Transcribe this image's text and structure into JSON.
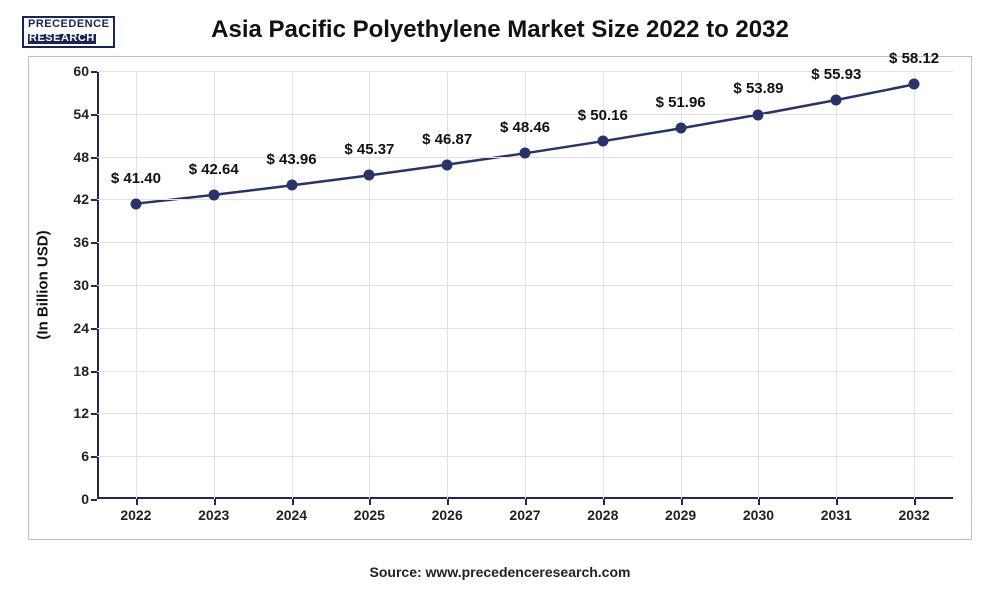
{
  "logo": {
    "line1": "PRECEDENCE",
    "line2": "RESEARCH"
  },
  "chart": {
    "type": "line",
    "title": "Asia Pacific Polyethylene Market Size 2022 to 2032",
    "ylabel": "(In Billion USD)",
    "source": "Source: www.precedenceresearch.com",
    "ylim": [
      0,
      60
    ],
    "ytick_step": 6,
    "yticks": [
      0,
      6,
      12,
      18,
      24,
      30,
      36,
      42,
      48,
      54,
      60
    ],
    "categories": [
      "2022",
      "2023",
      "2024",
      "2025",
      "2026",
      "2027",
      "2028",
      "2029",
      "2030",
      "2031",
      "2032"
    ],
    "values": [
      41.4,
      42.64,
      43.96,
      45.37,
      46.87,
      48.46,
      50.16,
      51.96,
      53.89,
      55.93,
      58.12
    ],
    "value_labels": [
      "$ 41.40",
      "$ 42.64",
      "$ 43.96",
      "$ 45.37",
      "$ 46.87",
      "$ 48.46",
      "$ 50.16",
      "$ 51.96",
      "$ 53.89",
      "$ 55.93",
      "$ 58.12"
    ],
    "line_color": "#2a3366",
    "line_width": 2.5,
    "marker_color": "#2a3366",
    "marker_size": 11,
    "grid_color": "#dfe2ee",
    "axis_color": "#20284f",
    "background_color": "#ffffff",
    "title_fontsize": 24,
    "label_fontsize": 15,
    "tick_fontsize": 14
  }
}
